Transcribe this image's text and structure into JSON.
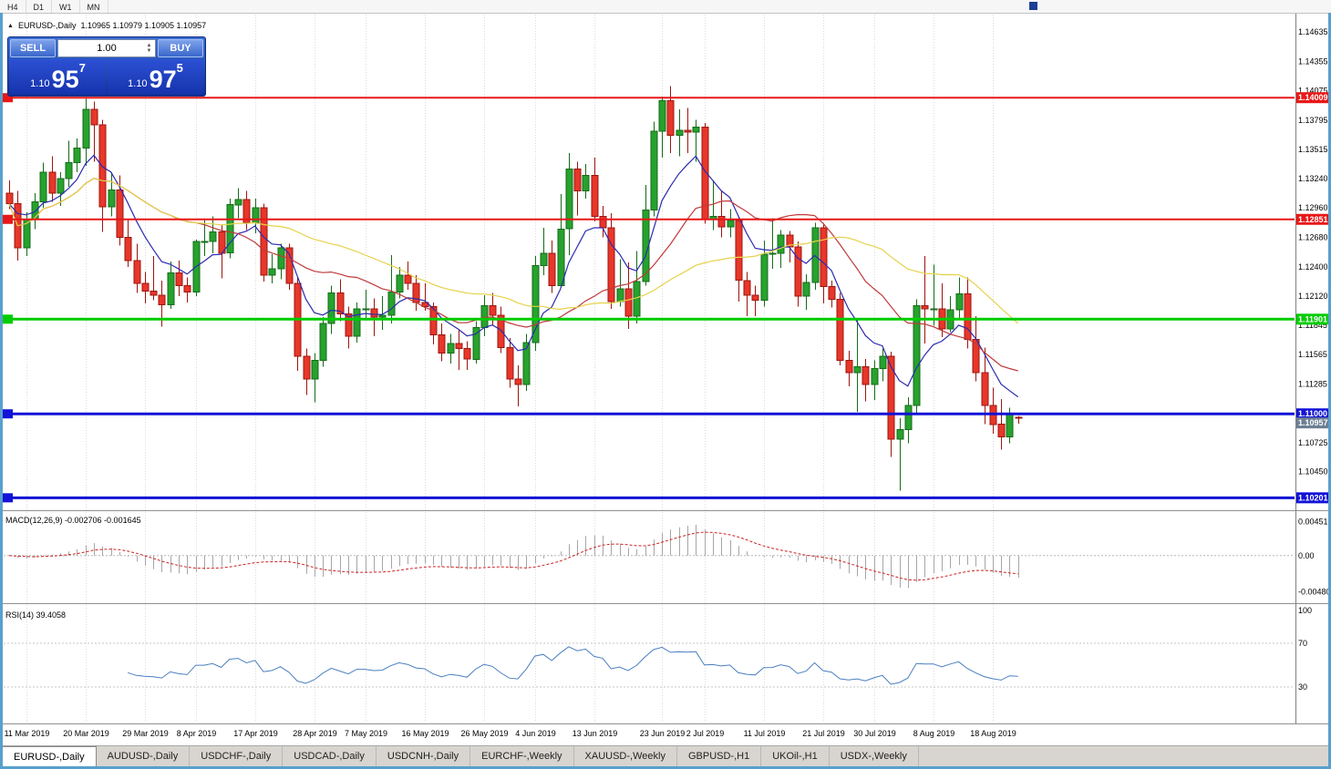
{
  "window": {
    "frame_color": "#58a0cc"
  },
  "toolbar": {
    "timeframes": [
      "H4",
      "D1",
      "W1",
      "MN"
    ]
  },
  "chart": {
    "title": "EURUSD-,Daily",
    "ohlc": "1.10965 1.10979 1.10905 1.10957"
  },
  "trade_panel": {
    "sell_label": "SELL",
    "buy_label": "BUY",
    "volume": "1.00",
    "sell_price": {
      "prefix": "1.10",
      "big": "95",
      "sup": "7"
    },
    "buy_price": {
      "prefix": "1.10",
      "big": "97",
      "sup": "5"
    }
  },
  "chart_data": {
    "type": "candlestick",
    "symbol": "EURUSD-",
    "period": "Daily",
    "price_range": [
      1.101,
      1.148
    ],
    "colors": {
      "bull": "#27a22d",
      "bull_border": "#156b1a",
      "bear": "#e8362a",
      "bear_border": "#9c150e"
    },
    "candles": [
      [
        1.131,
        1.1322,
        1.1295,
        1.13
      ],
      [
        1.13,
        1.1312,
        1.1246,
        1.1258
      ],
      [
        1.1258,
        1.1292,
        1.125,
        1.1285
      ],
      [
        1.1285,
        1.131,
        1.1276,
        1.1302
      ],
      [
        1.1302,
        1.1339,
        1.1296,
        1.133
      ],
      [
        1.133,
        1.1345,
        1.1302,
        1.131
      ],
      [
        1.131,
        1.133,
        1.1298,
        1.1324
      ],
      [
        1.1324,
        1.136,
        1.1316,
        1.1339
      ],
      [
        1.1339,
        1.1362,
        1.133,
        1.1353
      ],
      [
        1.1353,
        1.14,
        1.1336,
        1.139
      ],
      [
        1.139,
        1.1397,
        1.134,
        1.1375
      ],
      [
        1.1375,
        1.138,
        1.1273,
        1.1297
      ],
      [
        1.1297,
        1.133,
        1.1288,
        1.1313
      ],
      [
        1.1313,
        1.1327,
        1.126,
        1.1268
      ],
      [
        1.1268,
        1.1285,
        1.124,
        1.1246
      ],
      [
        1.1246,
        1.1262,
        1.1215,
        1.1224
      ],
      [
        1.1224,
        1.1235,
        1.1205,
        1.1217
      ],
      [
        1.1217,
        1.125,
        1.1208,
        1.1213
      ],
      [
        1.1213,
        1.1227,
        1.1183,
        1.1204
      ],
      [
        1.1204,
        1.1245,
        1.12,
        1.1234
      ],
      [
        1.1234,
        1.1246,
        1.1212,
        1.1222
      ],
      [
        1.1222,
        1.123,
        1.1206,
        1.1216
      ],
      [
        1.1216,
        1.1266,
        1.1212,
        1.1264
      ],
      [
        1.1264,
        1.1285,
        1.125,
        1.1264
      ],
      [
        1.1264,
        1.1288,
        1.1253,
        1.1273
      ],
      [
        1.1273,
        1.128,
        1.1229,
        1.1253
      ],
      [
        1.1253,
        1.1305,
        1.1248,
        1.1299
      ],
      [
        1.1299,
        1.1315,
        1.1286,
        1.1304
      ],
      [
        1.1304,
        1.1312,
        1.1275,
        1.1282
      ],
      [
        1.1282,
        1.1305,
        1.1272,
        1.1296
      ],
      [
        1.1296,
        1.13,
        1.1226,
        1.1232
      ],
      [
        1.1232,
        1.1252,
        1.1224,
        1.1238
      ],
      [
        1.1238,
        1.1262,
        1.1228,
        1.1258
      ],
      [
        1.1258,
        1.1262,
        1.1218,
        1.1224
      ],
      [
        1.1224,
        1.123,
        1.1141,
        1.1155
      ],
      [
        1.1155,
        1.1162,
        1.1118,
        1.1133
      ],
      [
        1.1133,
        1.1158,
        1.1111,
        1.1151
      ],
      [
        1.1151,
        1.1192,
        1.1145,
        1.1186
      ],
      [
        1.1186,
        1.1222,
        1.1176,
        1.1215
      ],
      [
        1.1215,
        1.1228,
        1.1188,
        1.1195
      ],
      [
        1.1195,
        1.1202,
        1.1162,
        1.1174
      ],
      [
        1.1174,
        1.1206,
        1.1168,
        1.12
      ],
      [
        1.12,
        1.1218,
        1.119,
        1.12
      ],
      [
        1.12,
        1.121,
        1.1174,
        1.1192
      ],
      [
        1.1192,
        1.1212,
        1.118,
        1.1194
      ],
      [
        1.1194,
        1.1251,
        1.1186,
        1.1216
      ],
      [
        1.1216,
        1.124,
        1.121,
        1.1232
      ],
      [
        1.1232,
        1.1245,
        1.1218,
        1.1224
      ],
      [
        1.1224,
        1.1232,
        1.1198,
        1.1206
      ],
      [
        1.1206,
        1.1224,
        1.1198,
        1.1202
      ],
      [
        1.1202,
        1.1206,
        1.1166,
        1.1175
      ],
      [
        1.1175,
        1.1186,
        1.115,
        1.1158
      ],
      [
        1.1158,
        1.1176,
        1.1148,
        1.1167
      ],
      [
        1.1167,
        1.118,
        1.1142,
        1.1162
      ],
      [
        1.1162,
        1.1169,
        1.1142,
        1.1152
      ],
      [
        1.1152,
        1.1188,
        1.1148,
        1.1182
      ],
      [
        1.1182,
        1.1213,
        1.1174,
        1.1203
      ],
      [
        1.1203,
        1.1215,
        1.1184,
        1.1194
      ],
      [
        1.1194,
        1.1202,
        1.1158,
        1.1163
      ],
      [
        1.1163,
        1.1172,
        1.1125,
        1.1133
      ],
      [
        1.1133,
        1.1146,
        1.1107,
        1.1128
      ],
      [
        1.1128,
        1.1176,
        1.1122,
        1.1168
      ],
      [
        1.1168,
        1.125,
        1.116,
        1.1241
      ],
      [
        1.1241,
        1.1277,
        1.1232,
        1.1253
      ],
      [
        1.1253,
        1.1265,
        1.1215,
        1.1222
      ],
      [
        1.1222,
        1.1309,
        1.122,
        1.1276
      ],
      [
        1.1276,
        1.1348,
        1.1251,
        1.1333
      ],
      [
        1.1333,
        1.134,
        1.1289,
        1.1312
      ],
      [
        1.1312,
        1.1338,
        1.1305,
        1.1327
      ],
      [
        1.1327,
        1.1344,
        1.1283,
        1.1288
      ],
      [
        1.1288,
        1.1298,
        1.1268,
        1.1277
      ],
      [
        1.1277,
        1.1291,
        1.12,
        1.1207
      ],
      [
        1.1207,
        1.1247,
        1.1202,
        1.1219
      ],
      [
        1.1219,
        1.1244,
        1.1181,
        1.1193
      ],
      [
        1.1193,
        1.1255,
        1.1186,
        1.1226
      ],
      [
        1.1226,
        1.1318,
        1.1222,
        1.1294
      ],
      [
        1.1294,
        1.1378,
        1.1288,
        1.1369
      ],
      [
        1.1369,
        1.1402,
        1.1344,
        1.1398
      ],
      [
        1.1398,
        1.1412,
        1.1348,
        1.1365
      ],
      [
        1.1365,
        1.139,
        1.1345,
        1.137
      ],
      [
        1.137,
        1.1391,
        1.1348,
        1.1368
      ],
      [
        1.1368,
        1.138,
        1.134,
        1.1373
      ],
      [
        1.1373,
        1.1377,
        1.1281,
        1.1285
      ],
      [
        1.1285,
        1.1322,
        1.1275,
        1.1288
      ],
      [
        1.1288,
        1.1312,
        1.1268,
        1.1278
      ],
      [
        1.1278,
        1.1295,
        1.1268,
        1.1284
      ],
      [
        1.1284,
        1.1288,
        1.1207,
        1.1227
      ],
      [
        1.1227,
        1.1235,
        1.1193,
        1.1213
      ],
      [
        1.1213,
        1.1222,
        1.1193,
        1.1208
      ],
      [
        1.1208,
        1.1265,
        1.1202,
        1.1252
      ],
      [
        1.1252,
        1.1286,
        1.1238,
        1.1253
      ],
      [
        1.1253,
        1.1275,
        1.1239,
        1.127
      ],
      [
        1.127,
        1.1274,
        1.1244,
        1.1259
      ],
      [
        1.1259,
        1.1264,
        1.1202,
        1.1212
      ],
      [
        1.1212,
        1.1233,
        1.1199,
        1.1225
      ],
      [
        1.1225,
        1.1282,
        1.1218,
        1.1277
      ],
      [
        1.1277,
        1.128,
        1.1205,
        1.1221
      ],
      [
        1.1221,
        1.1227,
        1.1201,
        1.1209
      ],
      [
        1.1209,
        1.1215,
        1.1146,
        1.1151
      ],
      [
        1.1151,
        1.116,
        1.1126,
        1.1139
      ],
      [
        1.1139,
        1.1189,
        1.1102,
        1.1145
      ],
      [
        1.1145,
        1.1152,
        1.1112,
        1.1128
      ],
      [
        1.1128,
        1.1151,
        1.1113,
        1.1143
      ],
      [
        1.1143,
        1.1162,
        1.1131,
        1.1155
      ],
      [
        1.1155,
        1.1159,
        1.1059,
        1.1076
      ],
      [
        1.1076,
        1.1096,
        1.1027,
        1.1085
      ],
      [
        1.1085,
        1.1116,
        1.1072,
        1.1108
      ],
      [
        1.1108,
        1.1209,
        1.1101,
        1.1203
      ],
      [
        1.1203,
        1.125,
        1.1167,
        1.12
      ],
      [
        1.12,
        1.1242,
        1.1184,
        1.12
      ],
      [
        1.12,
        1.1224,
        1.1173,
        1.1181
      ],
      [
        1.1181,
        1.1212,
        1.1178,
        1.1199
      ],
      [
        1.1199,
        1.123,
        1.1189,
        1.1214
      ],
      [
        1.1214,
        1.123,
        1.1162,
        1.1171
      ],
      [
        1.1171,
        1.1193,
        1.1131,
        1.1139
      ],
      [
        1.1139,
        1.1163,
        1.109,
        1.1108
      ],
      [
        1.1108,
        1.1125,
        1.1081,
        1.109
      ],
      [
        1.109,
        1.1114,
        1.1066,
        1.1078
      ],
      [
        1.1078,
        1.1106,
        1.1072,
        1.11
      ],
      [
        1.10965,
        1.10979,
        1.10905,
        1.10957
      ]
    ],
    "moving_averages": [
      {
        "period": 8,
        "method": "ema",
        "color": "#2b2bb0"
      },
      {
        "period": 20,
        "method": "sma",
        "color": "#c03a3a"
      },
      {
        "period": 38,
        "method": "sma",
        "color": "#e6d24a"
      }
    ],
    "h_lines": [
      {
        "value": 1.14009,
        "label": "1.14009",
        "color": "#e81717",
        "width": 2
      },
      {
        "value": 1.12851,
        "label": "1.12851",
        "color": "#e81717",
        "width": 2
      },
      {
        "value": 1.11901,
        "label": "1.11901",
        "color": "#00cc00",
        "width": 3
      },
      {
        "value": 1.11,
        "label": "1.11000",
        "color": "#1212d8",
        "width": 3
      },
      {
        "value": 1.10201,
        "label": "1.10201",
        "color": "#1212d8",
        "width": 3
      }
    ],
    "current_price": {
      "value": 1.10957,
      "label": "1.10957",
      "color": "#6c7f93"
    },
    "y_ticks": [
      "1.14635",
      "1.14355",
      "1.14075",
      "1.13795",
      "1.13515",
      "1.13240",
      "1.12960",
      "1.12680",
      "1.12400",
      "1.12120",
      "1.11845",
      "1.11565",
      "1.11285",
      "1.10725",
      "1.10450"
    ],
    "x_labels": [
      {
        "label": "11 Mar 2019",
        "index": 2
      },
      {
        "label": "20 Mar 2019",
        "index": 9
      },
      {
        "label": "29 Mar 2019",
        "index": 16
      },
      {
        "label": "8 Apr 2019",
        "index": 22
      },
      {
        "label": "17 Apr 2019",
        "index": 29
      },
      {
        "label": "28 Apr 2019",
        "index": 36
      },
      {
        "label": "7 May 2019",
        "index": 42
      },
      {
        "label": "16 May 2019",
        "index": 49
      },
      {
        "label": "26 May 2019",
        "index": 56
      },
      {
        "label": "4 Jun 2019",
        "index": 62
      },
      {
        "label": "13 Jun 2019",
        "index": 69
      },
      {
        "label": "23 Jun 2019",
        "index": 77
      },
      {
        "label": "2 Jul 2019",
        "index": 82
      },
      {
        "label": "11 Jul 2019",
        "index": 89
      },
      {
        "label": "21 Jul 2019",
        "index": 96
      },
      {
        "label": "30 Jul 2019",
        "index": 102
      },
      {
        "label": "8 Aug 2019",
        "index": 109
      },
      {
        "label": "18 Aug 2019",
        "index": 116
      }
    ],
    "indicators": {
      "macd": {
        "label": "MACD(12,26,9)",
        "values": "-0.002706 -0.001645",
        "fast": 12,
        "slow": 26,
        "signal": 9,
        "scale": [
          "0.004517",
          "0.00",
          "-0.004806"
        ],
        "range": [
          -0.0056,
          0.0053
        ],
        "histogram_color": "#a6a6a6",
        "signal_color": "#cc2222"
      },
      "rsi": {
        "label": "RSI(14)",
        "value": "39.4058",
        "period": 14,
        "levels": [
          70,
          30
        ],
        "scale": [
          "100",
          "70",
          "30"
        ],
        "line_color": "#4a7fc0"
      }
    }
  },
  "tabs": [
    {
      "label": "EURUSD-,Daily",
      "active": true
    },
    {
      "label": "AUDUSD-,Daily",
      "active": false
    },
    {
      "label": "USDCHF-,Daily",
      "active": false
    },
    {
      "label": "USDCAD-,Daily",
      "active": false
    },
    {
      "label": "USDCNH-,Daily",
      "active": false
    },
    {
      "label": "EURCHF-,Weekly",
      "active": false
    },
    {
      "label": "XAUUSD-,Weekly",
      "active": false
    },
    {
      "label": "GBPUSD-,H1",
      "active": false
    },
    {
      "label": "UKOil-,H1",
      "active": false
    },
    {
      "label": "USDX-,Weekly",
      "active": false
    }
  ]
}
